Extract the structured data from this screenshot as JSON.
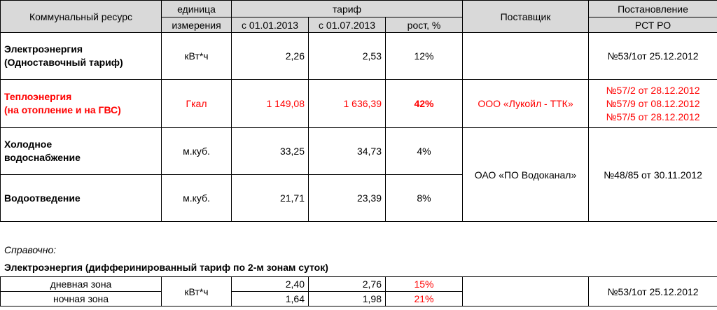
{
  "headers": {
    "resource": "Коммунальный ресурс",
    "unit_line1": "единица",
    "unit_line2": "измерения",
    "tariff": "тариф",
    "date1": "с 01.01.2013",
    "date2": "с 01.07.2013",
    "growth": "рост, %",
    "supplier": "Поставщик",
    "decree_line1": "Постановление",
    "decree_line2": "РСТ РО"
  },
  "rows": [
    {
      "name_line1": "Электроэнергия",
      "name_line2": "(Одноставочный тариф)",
      "unit": "кВт*ч",
      "t1": "2,26",
      "t2": "2,53",
      "growth": "12%",
      "supplier": "",
      "decree": "№53/1от 25.12.2012"
    },
    {
      "name_line1": "Теплоэнергия",
      "name_line2": "(на отопление и на ГВС)",
      "unit": "Гкал",
      "t1": "1 149,08",
      "t2": "1 636,39",
      "growth": "42%",
      "supplier": "ООО «Лукойл - ТТК»",
      "decree_lines": [
        "№57/2 от 28.12.2012",
        "№57/9 от 08.12.2012",
        "№57/5 от 28.12.2012"
      ]
    },
    {
      "name_line1": "Холодное",
      "name_line2": "водоснабжение",
      "unit": "м.куб.",
      "t1": "33,25",
      "t2": "34,73",
      "growth": "4%"
    },
    {
      "name": "Водоотведение",
      "unit": "м.куб.",
      "t1": "21,71",
      "t2": "23,39",
      "growth": "8%"
    }
  ],
  "water_supplier": "ОАО «ПО Водоканал»",
  "water_decree": "№48/85 от 30.11.2012",
  "reference": {
    "label": "Справочно:",
    "title": "Электроэнергия (дифферинированный тариф по 2-м зонам суток)",
    "unit": "кВт*ч",
    "decree": "№53/1от 25.12.2012",
    "zones": [
      {
        "name": "дневная зона",
        "t1": "2,40",
        "t2": "2,76",
        "growth": "15%"
      },
      {
        "name": "ночная зона",
        "t1": "1,64",
        "t2": "1,98",
        "growth": "21%"
      }
    ]
  },
  "colors": {
    "header_bg": "#d9d9d9",
    "highlight": "#ff0000"
  }
}
